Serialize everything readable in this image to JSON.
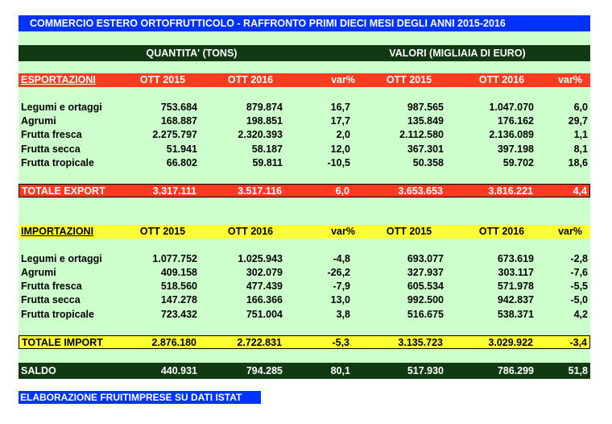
{
  "title": "COMMERCIO ESTERO ORTOFRUTTICOLO - RAFFRONTO PRIMI DIECI MESI DEGLI ANNI 2015-2016",
  "groups": {
    "quantity": "QUANTITA' (TONS)",
    "value": "VALORI (MIGLIAIA DI EURO)"
  },
  "colors": {
    "blue": "#0033ff",
    "red": "#ff3b1f",
    "yellow": "#ffff33",
    "green": "#ccffcc",
    "dark": "#123a12"
  },
  "export": {
    "header": [
      "ESPORTAZIONI",
      "OTT 2015",
      "OTT 2016",
      "var%",
      "OTT 2015",
      "OTT 2016",
      "var%"
    ],
    "rows": [
      [
        "Legumi e ortaggi",
        "753.684",
        "879.874",
        "16,7",
        "987.565",
        "1.047.070",
        "6,0"
      ],
      [
        "Agrumi",
        "168.887",
        "198.851",
        "17,7",
        "135.849",
        "176.162",
        "29,7"
      ],
      [
        "Frutta fresca",
        "2.275.797",
        "2.320.393",
        "2,0",
        "2.112.580",
        "2.136.089",
        "1,1"
      ],
      [
        "Frutta secca",
        "51.941",
        "58.187",
        "12,0",
        "367.301",
        "397.198",
        "8,1"
      ],
      [
        "Frutta tropicale",
        "66.802",
        "59.811",
        "-10,5",
        "50.358",
        "59.702",
        "18,6"
      ]
    ],
    "total": [
      "TOTALE EXPORT",
      "3.317.111",
      "3.517.116",
      "6,0",
      "3.653.653",
      "3.816.221",
      "4,4"
    ]
  },
  "import": {
    "header": [
      "IMPORTAZIONI",
      "OTT 2015",
      "OTT 2016",
      "var%",
      "OTT 2015",
      "OTT 2016",
      "var%"
    ],
    "rows": [
      [
        "Legumi e ortaggi",
        "1.077.752",
        "1.025.943",
        "-4,8",
        "693.077",
        "673.619",
        "-2,8"
      ],
      [
        "Agrumi",
        "409.158",
        "302.079",
        "-26,2",
        "327.937",
        "303.117",
        "-7,6"
      ],
      [
        "Frutta fresca",
        "518.560",
        "477.439",
        "-7,9",
        "605.534",
        "571.978",
        "-5,5"
      ],
      [
        "Frutta secca",
        "147.278",
        "166.366",
        "13,0",
        "992.500",
        "942.837",
        "-5,0"
      ],
      [
        "Frutta tropicale",
        "723.432",
        "751.004",
        "3,8",
        "516.675",
        "538.371",
        "4,2"
      ]
    ],
    "total": [
      "TOTALE IMPORT",
      "2.876.180",
      "2.722.831",
      "-5,3",
      "3.135.723",
      "3.029.922",
      "-3,4"
    ]
  },
  "saldo": [
    "SALDO",
    "440.931",
    "794.285",
    "80,1",
    "517.930",
    "786.299",
    "51,8"
  ],
  "note": "ELABORAZIONE FRUITIMPRESE SU DATI ISTAT"
}
